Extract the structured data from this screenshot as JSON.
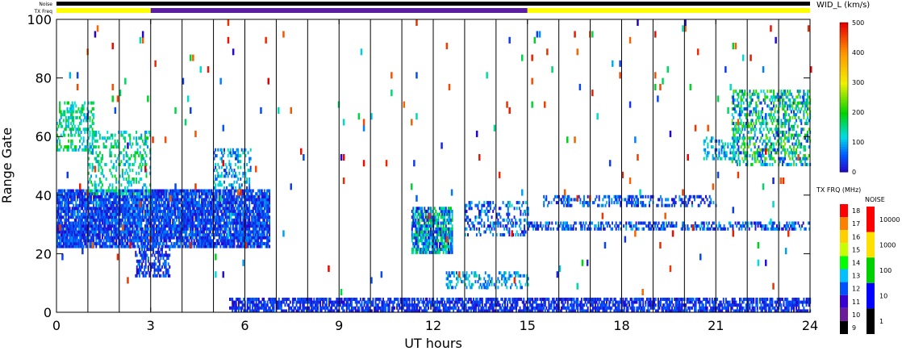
{
  "chart_data": {
    "type": "heatmap",
    "title": "",
    "xlabel": "UT hours",
    "ylabel": "Range Gate",
    "xlim": [
      0,
      24
    ],
    "ylim": [
      0,
      100
    ],
    "x_ticks": [
      "0",
      "3",
      "6",
      "9",
      "12",
      "15",
      "18",
      "21",
      "24"
    ],
    "x_tick_values": [
      0,
      3,
      6,
      9,
      12,
      15,
      18,
      21,
      24
    ],
    "y_ticks": [
      "0",
      "20",
      "40",
      "60",
      "80",
      "100"
    ],
    "y_tick_values": [
      0,
      20,
      40,
      60,
      80,
      100
    ],
    "hour_lines": [
      1,
      2,
      3,
      4,
      5,
      6,
      7,
      8,
      9,
      10,
      11,
      12,
      13,
      14,
      15,
      16,
      17,
      18,
      19,
      20,
      21,
      22,
      23
    ],
    "status_bars": {
      "noise_label": "Noise",
      "txfreq_label": "TX Freq",
      "txfreq_segments": [
        {
          "start": 0,
          "end": 3,
          "color": "#ffff00"
        },
        {
          "start": 3,
          "end": 15,
          "color": "#5a1fa0"
        },
        {
          "start": 15,
          "end": 24,
          "color": "#ffff00"
        }
      ]
    },
    "color_scale": {
      "title": "WID_L (km/s)",
      "ticks": [
        "0",
        "100",
        "200",
        "300",
        "400",
        "500"
      ],
      "tick_values": [
        0,
        100,
        200,
        300,
        400,
        500
      ],
      "range": [
        0,
        500
      ]
    },
    "freq_scale": {
      "title": "TX FRQ (MHz)",
      "ticks": [
        "9",
        "10",
        "11",
        "12",
        "13",
        "14",
        "15",
        "16",
        "17",
        "18"
      ],
      "colors": [
        "#000000",
        "#6a1b9a",
        "#3a00d0",
        "#0050ff",
        "#00c0ff",
        "#00ff00",
        "#c8ff00",
        "#ffd000",
        "#ff8000",
        "#ff0000"
      ]
    },
    "noise_scale": {
      "title": "NOISE",
      "ticks": [
        "1",
        "10",
        "100",
        "1000",
        "10000"
      ],
      "colors": [
        "#000000",
        "#0000ff",
        "#00d000",
        "#ffe000",
        "#ff0000"
      ]
    },
    "regions": [
      {
        "t0": 0.0,
        "t1": 6.8,
        "g0": 22,
        "g1": 42,
        "density": 0.85,
        "w0": 0,
        "w1": 90
      },
      {
        "t0": 0.0,
        "t1": 1.2,
        "g0": 55,
        "g1": 72,
        "density": 0.35,
        "w0": 80,
        "w1": 220
      },
      {
        "t0": 1.0,
        "t1": 3.0,
        "g0": 40,
        "g1": 62,
        "density": 0.3,
        "w0": 80,
        "w1": 200
      },
      {
        "t0": 2.5,
        "t1": 3.6,
        "g0": 12,
        "g1": 22,
        "density": 0.5,
        "w0": 0,
        "w1": 80
      },
      {
        "t0": 5.0,
        "t1": 6.2,
        "g0": 42,
        "g1": 56,
        "density": 0.35,
        "w0": 20,
        "w1": 160
      },
      {
        "t0": 5.5,
        "t1": 24.0,
        "g0": 0,
        "g1": 5,
        "density": 0.7,
        "w0": 0,
        "w1": 70
      },
      {
        "t0": 11.3,
        "t1": 12.6,
        "g0": 20,
        "g1": 36,
        "density": 0.8,
        "w0": 0,
        "w1": 200
      },
      {
        "t0": 12.4,
        "t1": 15.0,
        "g0": 8,
        "g1": 14,
        "density": 0.35,
        "w0": 40,
        "w1": 160
      },
      {
        "t0": 13.0,
        "t1": 15.0,
        "g0": 26,
        "g1": 38,
        "density": 0.35,
        "w0": 0,
        "w1": 120
      },
      {
        "t0": 15.0,
        "t1": 24.0,
        "g0": 28,
        "g1": 31,
        "density": 0.45,
        "w0": 0,
        "w1": 110
      },
      {
        "t0": 15.5,
        "t1": 21.0,
        "g0": 36,
        "g1": 40,
        "density": 0.35,
        "w0": 0,
        "w1": 110
      },
      {
        "t0": 21.5,
        "t1": 24.0,
        "g0": 50,
        "g1": 76,
        "density": 0.45,
        "w0": 20,
        "w1": 260
      },
      {
        "t0": 20.6,
        "t1": 21.6,
        "g0": 52,
        "g1": 60,
        "density": 0.35,
        "w0": 40,
        "w1": 160
      }
    ],
    "scatter_density": 0.015
  }
}
